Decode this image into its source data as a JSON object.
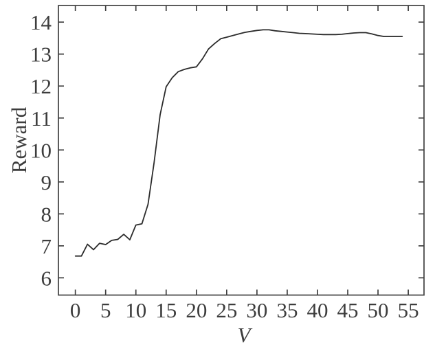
{
  "figure": {
    "background_color": "#ffffff",
    "line_color": "#2b2b2b",
    "axis_color": "#3f3f3f",
    "tick_label_color": "#3d3d3d"
  },
  "chart_data": {
    "type": "line",
    "title": "",
    "xlabel": "V",
    "ylabel": "Reward",
    "x": [
      0,
      1,
      2,
      3,
      4,
      5,
      6,
      7,
      8,
      9,
      10,
      11,
      12,
      13,
      14,
      15,
      16,
      17,
      18,
      19,
      20,
      21,
      22,
      23,
      24,
      25,
      26,
      27,
      28,
      29,
      30,
      31,
      32,
      33,
      34,
      35,
      36,
      37,
      38,
      39,
      40,
      41,
      42,
      43,
      44,
      45,
      46,
      47,
      48,
      49,
      50,
      51,
      52,
      53,
      54
    ],
    "y": [
      6.68,
      6.68,
      7.05,
      6.88,
      7.08,
      7.04,
      7.17,
      7.2,
      7.36,
      7.19,
      7.65,
      7.69,
      8.3,
      9.6,
      11.1,
      11.98,
      12.26,
      12.45,
      12.52,
      12.57,
      12.6,
      12.85,
      13.16,
      13.33,
      13.48,
      13.53,
      13.58,
      13.63,
      13.68,
      13.71,
      13.74,
      13.76,
      13.76,
      13.73,
      13.71,
      13.69,
      13.67,
      13.65,
      13.64,
      13.63,
      13.62,
      13.61,
      13.61,
      13.61,
      13.62,
      13.64,
      13.66,
      13.67,
      13.67,
      13.63,
      13.58,
      13.55,
      13.55,
      13.55,
      13.55
    ],
    "xticks": [
      0,
      5,
      10,
      15,
      20,
      25,
      30,
      35,
      40,
      45,
      50,
      55
    ],
    "xtick_labels": [
      "0",
      "5",
      "10",
      "15",
      "20",
      "25",
      "30",
      "35",
      "40",
      "45",
      "50",
      "55"
    ],
    "yticks": [
      6,
      7,
      8,
      9,
      10,
      11,
      12,
      13,
      14
    ],
    "ytick_labels": [
      "6",
      "7",
      "8",
      "9",
      "10",
      "11",
      "12",
      "13",
      "14"
    ],
    "xlim": [
      -2.8,
      57.6
    ],
    "ylim": [
      5.46,
      14.52
    ],
    "grid": false,
    "legend": null,
    "box": true,
    "tick_direction": "in"
  }
}
